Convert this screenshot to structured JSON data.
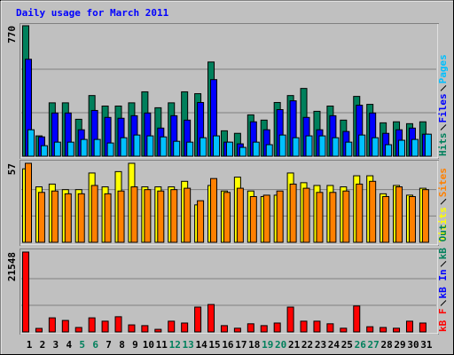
{
  "chart_data": [
    {
      "type": "bar",
      "title": "Daily usage for March 2011",
      "ylim": [
        0,
        770
      ],
      "yticks": [
        770
      ],
      "grid_lines": 3,
      "series": [
        {
          "name": "Hits",
          "color": "#00805c",
          "values": [
            770,
            120,
            315,
            315,
            218,
            358,
            296,
            296,
            315,
            380,
            286,
            315,
            380,
            369,
            556,
            150,
            135,
            244,
            213,
            317,
            358,
            400,
            265,
            296,
            213,
            353,
            306,
            197,
            203,
            192,
            203
          ]
        },
        {
          "name": "Files",
          "color": "#0000ff",
          "values": [
            572,
            114,
            255,
            255,
            156,
            270,
            229,
            224,
            239,
            255,
            166,
            239,
            213,
            317,
            452,
            83,
            73,
            203,
            156,
            275,
            327,
            229,
            156,
            239,
            146,
            301,
            255,
            135,
            156,
            166,
            130
          ]
        },
        {
          "name": "Pages",
          "color": "#00c0ff",
          "values": [
            156,
            62,
            83,
            83,
            99,
            99,
            78,
            109,
            125,
            120,
            114,
            88,
            83,
            109,
            120,
            83,
            52,
            83,
            68,
            125,
            109,
            120,
            120,
            109,
            83,
            125,
            109,
            68,
            94,
            99,
            130
          ]
        }
      ]
    },
    {
      "type": "bar",
      "ylim": [
        0,
        57
      ],
      "yticks": [
        57
      ],
      "grid_lines": 3,
      "series": [
        {
          "name": "Visits",
          "color": "#ffff00",
          "values": [
            53,
            40,
            42,
            38,
            38,
            50,
            40,
            51,
            57,
            40,
            40,
            40,
            44,
            27,
            41,
            37,
            47,
            37,
            33,
            34,
            50,
            43,
            41,
            41,
            40,
            48,
            48,
            35,
            41,
            34,
            39
          ]
        },
        {
          "name": "Sites",
          "color": "#ff8000",
          "values": [
            57,
            36,
            37,
            35,
            35,
            41,
            35,
            37,
            40,
            38,
            37,
            38,
            39,
            30,
            46,
            36,
            39,
            33,
            34,
            37,
            42,
            39,
            36,
            36,
            37,
            42,
            44,
            33,
            40,
            33,
            38
          ]
        }
      ]
    },
    {
      "type": "bar",
      "ylim": [
        0,
        21548
      ],
      "yticks": [
        21548
      ],
      "grid_lines": 3,
      "categories": [
        "1",
        "2",
        "3",
        "4",
        "5",
        "6",
        "7",
        "8",
        "9",
        "10",
        "11",
        "12",
        "13",
        "14",
        "15",
        "16",
        "17",
        "18",
        "19",
        "20",
        "21",
        "22",
        "23",
        "24",
        "25",
        "26",
        "27",
        "28",
        "29",
        "30",
        "31"
      ],
      "highlight_indices": [
        4,
        5,
        11,
        12,
        18,
        19,
        25,
        26
      ],
      "highlight_color": "#00805c",
      "series": [
        {
          "name": "kB F",
          "color": "#ff0000",
          "values": [
            21548,
            950,
            3800,
            3100,
            1200,
            3800,
            2900,
            4100,
            1900,
            1700,
            700,
            2900,
            2400,
            6700,
            7400,
            1700,
            1000,
            2200,
            1700,
            2400,
            6700,
            2900,
            2900,
            2200,
            1000,
            7000,
            1400,
            1200,
            1000,
            2900,
            2400
          ]
        },
        {
          "name": "kB In",
          "color": "#0000ff",
          "values": [
            0,
            0,
            0,
            0,
            0,
            0,
            0,
            0,
            0,
            0,
            0,
            0,
            0,
            0,
            0,
            0,
            0,
            0,
            0,
            0,
            0,
            0,
            0,
            0,
            0,
            0,
            0,
            0,
            0,
            0,
            0
          ]
        },
        {
          "name": "kB Out",
          "color": "#00805c",
          "values": [
            0,
            0,
            0,
            0,
            0,
            0,
            0,
            0,
            0,
            0,
            0,
            0,
            0,
            0,
            0,
            0,
            0,
            0,
            0,
            0,
            0,
            0,
            0,
            0,
            0,
            0,
            0,
            0,
            0,
            0,
            0
          ]
        }
      ]
    }
  ]
}
